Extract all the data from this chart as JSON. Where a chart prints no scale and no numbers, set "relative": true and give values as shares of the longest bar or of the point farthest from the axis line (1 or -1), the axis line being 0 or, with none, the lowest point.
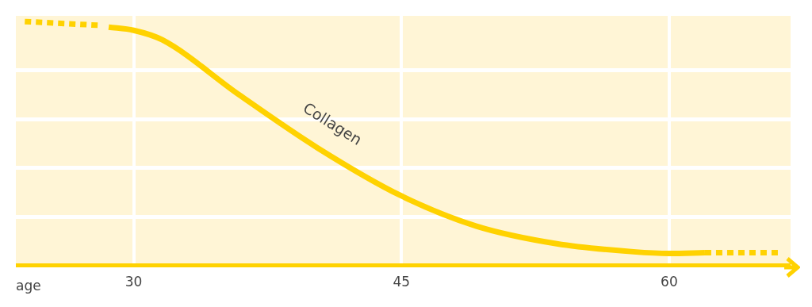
{
  "chart_data": {
    "type": "line",
    "relative": true,
    "xlabel": "age",
    "xlim": [
      23.4,
      66.8
    ],
    "xticks": [
      30,
      45,
      60
    ],
    "grid": true,
    "ref_lines": [
      {
        "axis": "y",
        "value": 0,
        "color": "#ffd200",
        "line_style": "solid"
      }
    ],
    "series": [
      {
        "color": "#ffd200",
        "line_style": "dotted",
        "x": [
          23.9,
          28.2
        ],
        "values": [
          1.0,
          0.984
        ]
      },
      {
        "name": "Collagen",
        "color": "#ffd200",
        "line_style": "solid",
        "x": [
          28.6,
          30,
          31.6,
          35.9,
          40.3,
          45,
          49.2,
          53.7,
          58,
          60,
          62
        ],
        "values": [
          0.977,
          0.964,
          0.925,
          0.7,
          0.482,
          0.285,
          0.161,
          0.089,
          0.056,
          0.049,
          0.052
        ]
      },
      {
        "color": "#ffd200",
        "line_style": "dotted",
        "x": [
          62,
          66.2
        ],
        "values": [
          0.052,
          0.052
        ]
      }
    ]
  }
}
